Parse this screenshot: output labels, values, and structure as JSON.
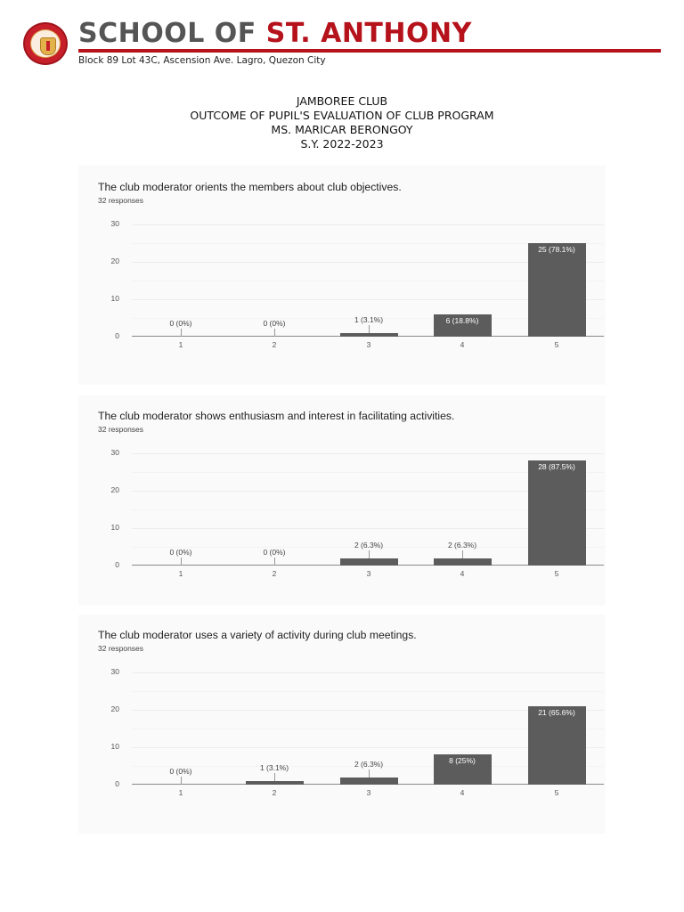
{
  "header": {
    "school_name_prefix": "SCHOOL OF ",
    "school_name_accent": "ST. ANTHONY",
    "address": "Block 89 Lot 43C, Ascension Ave. Lagro, Quezon City",
    "logo_icon": "school-seal-icon",
    "accent_color": "#b5121b",
    "text_color": "#555555"
  },
  "document": {
    "title_lines": [
      "JAMBOREE CLUB",
      "OUTCOME OF PUPIL'S EVALUATION OF CLUB PROGRAM",
      "MS. MARICAR BERONGOY",
      "S.Y. 2022-2023"
    ]
  },
  "chart_data": [
    {
      "type": "bar",
      "title": "The club moderator orients the members about club objectives.",
      "subtitle": "32 responses",
      "categories": [
        "1",
        "2",
        "3",
        "4",
        "5"
      ],
      "values": [
        0,
        0,
        1,
        6,
        25
      ],
      "labels": [
        "0 (0%)",
        "0 (0%)",
        "1 (3.1%)",
        "6 (18.8%)",
        "25 (78.1%)"
      ],
      "xlabel": "",
      "ylabel": "",
      "ylim": [
        0,
        30
      ],
      "yticks": [
        "0",
        "10",
        "20",
        "30"
      ],
      "grid": true,
      "bar_color": "#5c5c5c"
    },
    {
      "type": "bar",
      "title": "The club moderator shows enthusiasm and interest in facilitating activities.",
      "subtitle": "32 responses",
      "categories": [
        "1",
        "2",
        "3",
        "4",
        "5"
      ],
      "values": [
        0,
        0,
        2,
        2,
        28
      ],
      "labels": [
        "0 (0%)",
        "0 (0%)",
        "2 (6.3%)",
        "2 (6.3%)",
        "28 (87.5%)"
      ],
      "xlabel": "",
      "ylabel": "",
      "ylim": [
        0,
        30
      ],
      "yticks": [
        "0",
        "10",
        "20",
        "30"
      ],
      "grid": true,
      "bar_color": "#5c5c5c"
    },
    {
      "type": "bar",
      "title": "The club moderator uses a variety of activity during club meetings.",
      "subtitle": "32 responses",
      "categories": [
        "1",
        "2",
        "3",
        "4",
        "5"
      ],
      "values": [
        0,
        1,
        2,
        8,
        21
      ],
      "labels": [
        "0 (0%)",
        "1 (3.1%)",
        "2 (6.3%)",
        "8 (25%)",
        "21 (65.6%)"
      ],
      "xlabel": "",
      "ylabel": "",
      "ylim": [
        0,
        30
      ],
      "yticks": [
        "0",
        "10",
        "20",
        "30"
      ],
      "grid": true,
      "bar_color": "#5c5c5c"
    }
  ]
}
